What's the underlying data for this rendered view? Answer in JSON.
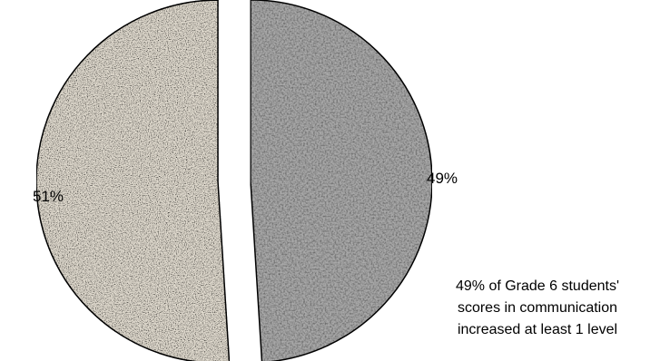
{
  "chart_data": {
    "type": "pie",
    "slices": [
      {
        "label": "51%",
        "value": 51,
        "color": "#e2dcd0"
      },
      {
        "label": "49%",
        "value": 49,
        "color": "#a9a9a9"
      }
    ],
    "annotation": [
      "49% of Grade 6 students'",
      "scores in communication",
      "increased at least 1 level"
    ]
  }
}
